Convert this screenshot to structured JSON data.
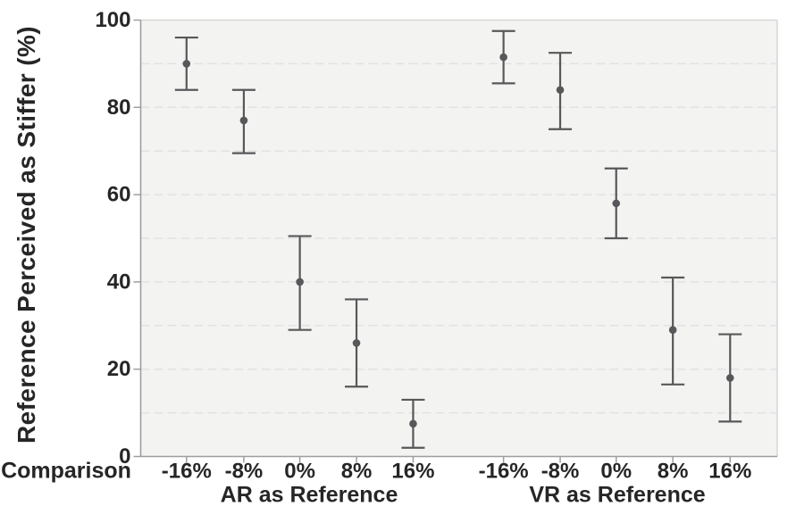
{
  "chart_data": {
    "type": "scatter",
    "subtype": "point-estimates-with-error-bars",
    "title": "",
    "ylabel": "Reference Perceived as Stiffer (%)",
    "xlabel": "Comparison",
    "ylim": [
      0,
      100
    ],
    "yticks": [
      0,
      20,
      40,
      60,
      80,
      100
    ],
    "grid_step": 10,
    "grid_style": "dashed",
    "legend": "none",
    "categories": [
      "-16%",
      "-8%",
      "0%",
      "8%",
      "16%"
    ],
    "groups": [
      {
        "label": "AR as Reference",
        "points": [
          {
            "category": "-16%",
            "mean": 90,
            "ci_low": 84,
            "ci_high": 96
          },
          {
            "category": "-8%",
            "mean": 77,
            "ci_low": 69.5,
            "ci_high": 84
          },
          {
            "category": "0%",
            "mean": 40,
            "ci_low": 29,
            "ci_high": 50.5
          },
          {
            "category": "8%",
            "mean": 26,
            "ci_low": 16,
            "ci_high": 36
          },
          {
            "category": "16%",
            "mean": 7.5,
            "ci_low": 2,
            "ci_high": 13
          }
        ]
      },
      {
        "label": "VR as Reference",
        "points": [
          {
            "category": "-16%",
            "mean": 91.5,
            "ci_low": 85.5,
            "ci_high": 97.5
          },
          {
            "category": "-8%",
            "mean": 84,
            "ci_low": 75,
            "ci_high": 92.5
          },
          {
            "category": "0%",
            "mean": 58,
            "ci_low": 50,
            "ci_high": 66
          },
          {
            "category": "8%",
            "mean": 29,
            "ci_low": 16.5,
            "ci_high": 41
          },
          {
            "category": "16%",
            "mean": 18,
            "ci_low": 8,
            "ci_high": 28
          }
        ]
      }
    ],
    "x_fracs": [
      [
        0.072,
        0.162,
        0.25,
        0.339,
        0.428
      ],
      [
        0.57,
        0.659,
        0.747,
        0.836,
        0.926
      ]
    ],
    "colors": {
      "marker": "#58585a",
      "plot_bg": "#f3f3f2",
      "grid": "#e2e2e2",
      "axis": "#9e9e9e",
      "panel_border": "#d6d6d6",
      "text": "#262626"
    }
  }
}
